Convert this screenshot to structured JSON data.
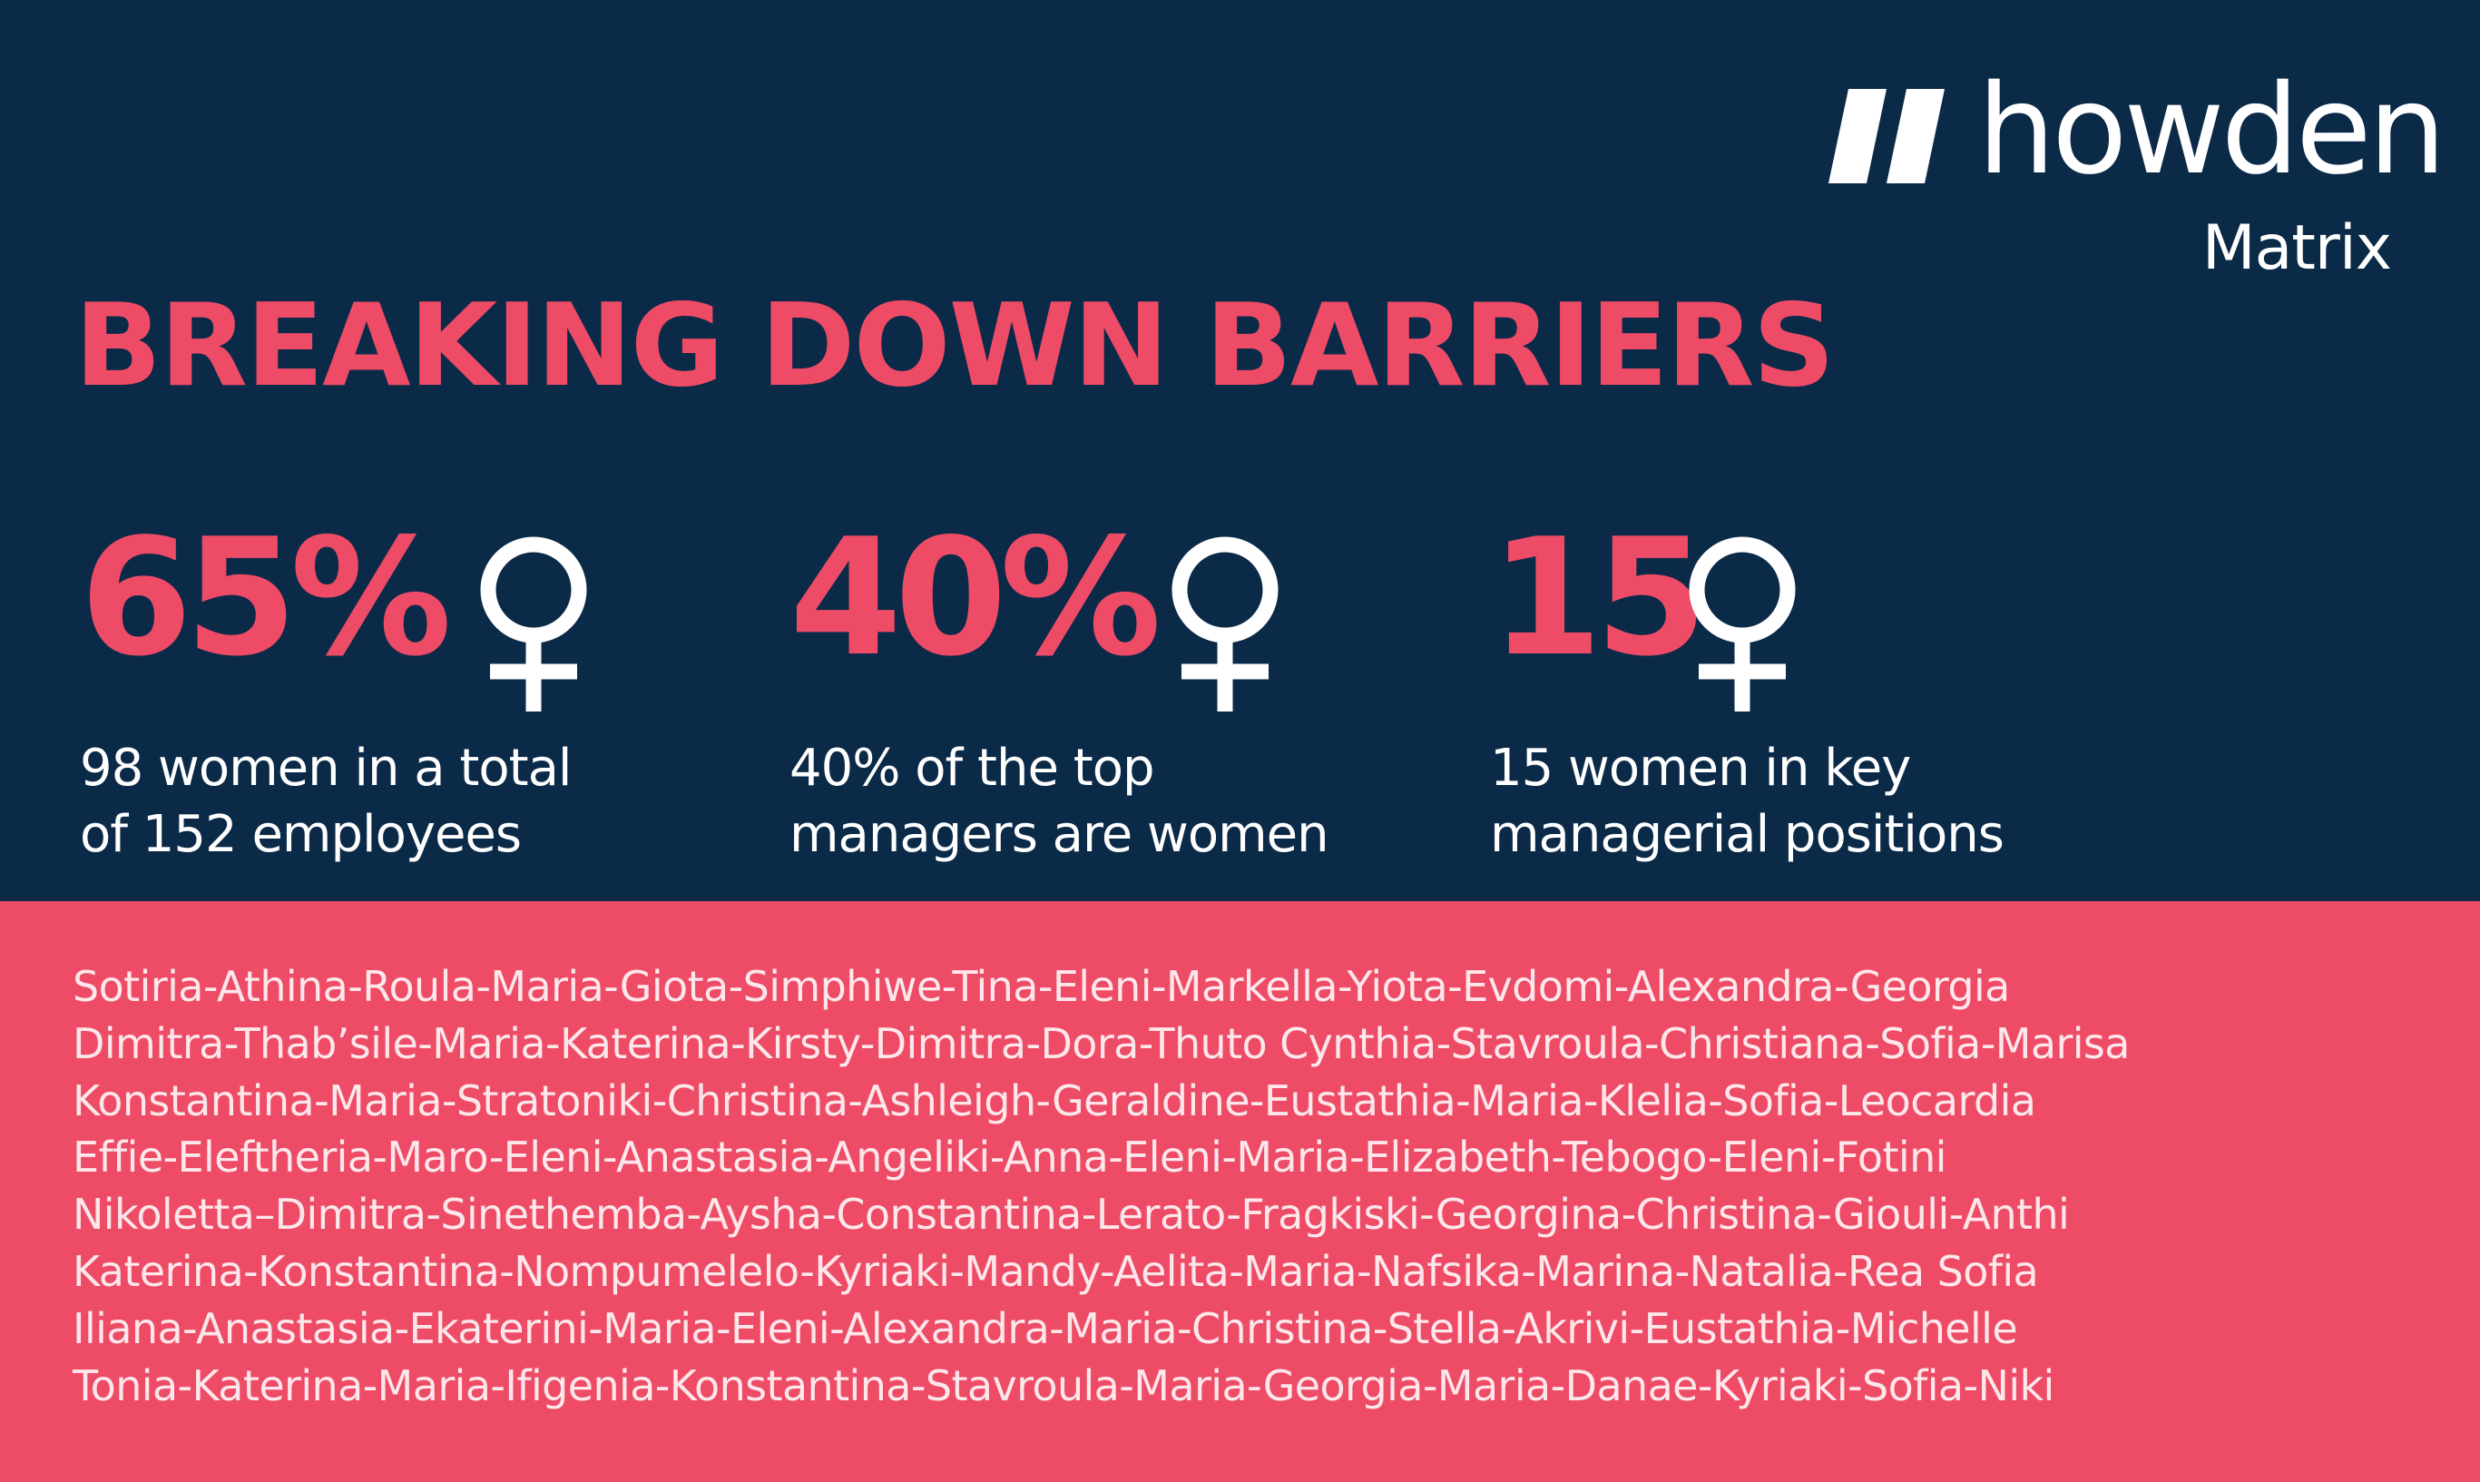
{
  "brand": {
    "name": "howden",
    "sub": "Matrix"
  },
  "headline": "BREAKING DOWN BARRIERS",
  "stats": [
    {
      "value": "65%",
      "icon": "female-symbol-icon",
      "desc_line1": "98 women in a total",
      "desc_line2": "of 152 employees"
    },
    {
      "value": "40%",
      "icon": "female-symbol-icon",
      "desc_line1": "40% of the top",
      "desc_line2": "managers are women"
    },
    {
      "value": "15",
      "icon": "female-symbol-icon",
      "desc_line1": "15 women in key",
      "desc_line2": "managerial positions"
    }
  ],
  "names": [
    "Sotiria-Athina-Roula-Maria-Giota-Simphiwe-Tina-Eleni-Markella-Yiota-Evdomi-Alexandra-Georgia",
    "Dimitra-Thab’sile-Maria-Katerina-Kirsty-Dimitra-Dora-Thuto Cynthia-Stavroula-Christiana-Sofia-Marisa",
    "Konstantina-Maria-Stratoniki-Christina-Ashleigh-Geraldine-Eustathia-Maria-Klelia-Sofia-Leocardia",
    "Effie-Eleftheria-Maro-Eleni-Anastasia-Angeliki-Anna-Eleni-Maria-Elizabeth-Tebogo-Eleni-Fotini",
    "Nikoletta–Dimitra-Sinethemba-Aysha-Constantina-Lerato-Fragkiski-Georgina-Christina-Giouli-Anthi",
    "Katerina-Konstantina-Nompumelelo-Kyriaki-Mandy-Aelita-Maria-Nafsika-Marina-Natalia-Rea  Sofia",
    "Iliana-Anastasia-Ekaterini-Maria-Eleni-Alexandra-Maria-Christina-Stella-Akrivi-Eustathia-Michelle",
    "Tonia-Katerina-Maria-Ifigenia-Konstantina-Stavroula-Maria-Georgia-Maria-Danae-Kyriaki-Sofia-Niki"
  ],
  "colors": {
    "navy": "#0b2a48",
    "accent": "#ee4b67",
    "text_light": "#ffffff"
  }
}
